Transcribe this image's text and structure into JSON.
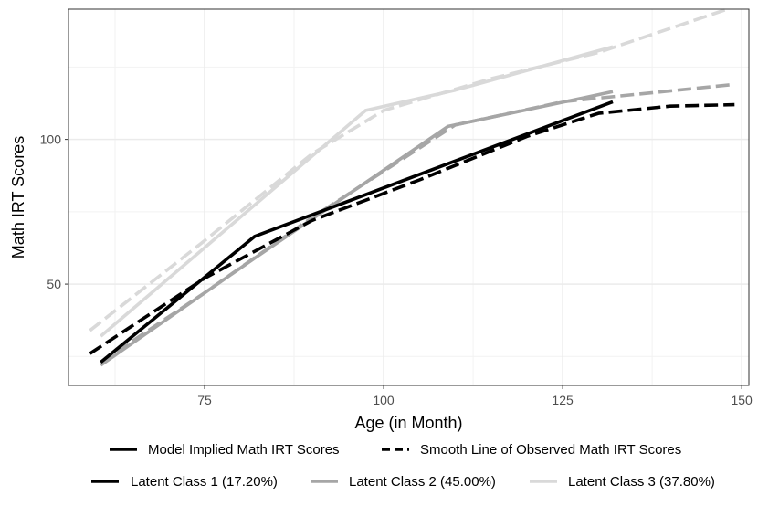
{
  "chart_data": {
    "type": "line",
    "title": "",
    "xlabel": "Age (in Month)",
    "ylabel": "Math IRT Scores",
    "xlim": [
      56,
      151
    ],
    "ylim": [
      15,
      145
    ],
    "x_ticks": [
      75,
      100,
      125,
      150
    ],
    "y_ticks": [
      50,
      100
    ],
    "grid": true,
    "legend_position": "bottom",
    "line_type_legend": [
      {
        "key": "model",
        "label": "Model Implied Math IRT Scores",
        "dash": "solid"
      },
      {
        "key": "smooth",
        "label": "Smooth Line of Observed Math IRT Scores",
        "dash": "dashed"
      }
    ],
    "class_legend": [
      {
        "key": "class1",
        "label": "Latent Class 1 (17.20%)",
        "color": "#000000"
      },
      {
        "key": "class2",
        "label": "Latent Class 2 (45.00%)",
        "color": "#a6a6a6"
      },
      {
        "key": "class3",
        "label": "Latent Class 3 (37.80%)",
        "color": "#d9d9d9"
      }
    ],
    "series": [
      {
        "name": "Latent Class 3 model",
        "class": "class3",
        "line": "model",
        "x": [
          60.5,
          97.5,
          110,
          132
        ],
        "y": [
          32,
          110,
          117,
          132
        ]
      },
      {
        "name": "Latent Class 3 smooth",
        "class": "class3",
        "line": "smooth",
        "x": [
          59,
          75,
          90,
          100,
          115,
          130,
          148
        ],
        "y": [
          34,
          65,
          95,
          110,
          121,
          130,
          145
        ]
      },
      {
        "name": "Latent Class 2 model",
        "class": "class2",
        "line": "model",
        "x": [
          60.5,
          82,
          109,
          132
        ],
        "y": [
          22,
          59,
          104.5,
          116.5
        ]
      },
      {
        "name": "Latent Class 2 smooth",
        "class": "class2",
        "line": "smooth",
        "x": [
          60.5,
          75,
          90,
          100,
          110,
          125,
          149
        ],
        "y": [
          23,
          47,
          73,
          89,
          105,
          113,
          119
        ]
      },
      {
        "name": "Latent Class 1 model",
        "class": "class1",
        "line": "model",
        "x": [
          60.5,
          82,
          132
        ],
        "y": [
          23,
          66.5,
          113
        ]
      },
      {
        "name": "Latent Class 1 smooth",
        "class": "class1",
        "line": "smooth",
        "x": [
          59,
          75,
          90,
          105,
          120,
          130,
          140,
          149
        ],
        "y": [
          26,
          52,
          72,
          86,
          101,
          109,
          111.5,
          112
        ]
      }
    ]
  }
}
